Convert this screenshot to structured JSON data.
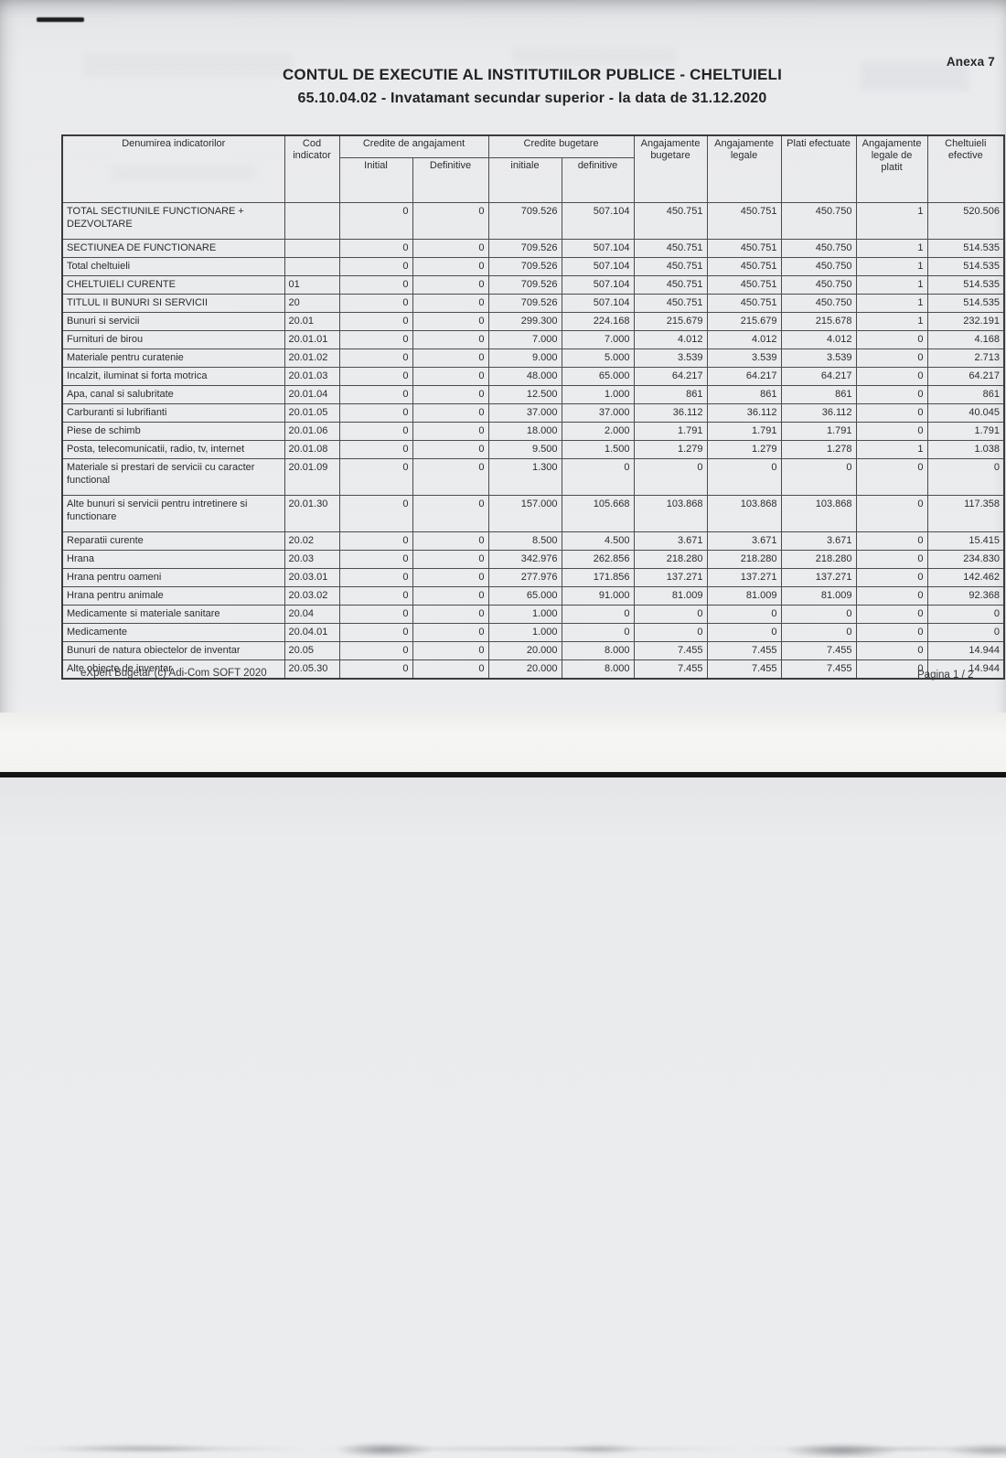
{
  "page": {
    "anexa_label": "Anexa 7",
    "title_line1": "CONTUL DE EXECUTIE AL INSTITUTIILOR PUBLICE - CHELTUIELI",
    "title_line2": "65.10.04.02 - Invatamant secundar superior - la data de 31.12.2020",
    "footer_left": "eXpert Bugetar (c) Adi-Com SOFT 2020",
    "footer_right": "Pagina 1 / 2"
  },
  "table": {
    "columns": {
      "name": "Denumirea indicatorilor",
      "code_line1": "Cod",
      "code_line2": "indicator",
      "group_angajament": "Credite de angajament",
      "group_bugetare": "Credite bugetare",
      "sub_initial": "Initial",
      "sub_definitive": "Definitive",
      "sub_initiale": "initiale",
      "sub_definitive2": "definitive",
      "ang_bugetare": "Angajamente bugetare",
      "ang_legale": "Angajamente legale",
      "plati_efectuate": "Plati efectuate",
      "ang_legale_platit": "Angajamente legale de platit",
      "cheltuieli_efective": "Cheltuieli efective"
    },
    "rows": [
      {
        "name": "TOTAL SECTIUNILE FUNCTIONARE + DEZVOLTARE",
        "code": "",
        "tall": true,
        "values": [
          "0",
          "0",
          "709.526",
          "507.104",
          "450.751",
          "450.751",
          "450.750",
          "1",
          "520.506"
        ]
      },
      {
        "name": "SECTIUNEA DE FUNCTIONARE",
        "code": "",
        "tall": false,
        "values": [
          "0",
          "0",
          "709.526",
          "507.104",
          "450.751",
          "450.751",
          "450.750",
          "1",
          "514.535"
        ]
      },
      {
        "name": "Total cheltuieli",
        "code": "",
        "tall": false,
        "values": [
          "0",
          "0",
          "709.526",
          "507.104",
          "450.751",
          "450.751",
          "450.750",
          "1",
          "514.535"
        ]
      },
      {
        "name": "CHELTUIELI CURENTE",
        "code": "01",
        "tall": false,
        "values": [
          "0",
          "0",
          "709.526",
          "507.104",
          "450.751",
          "450.751",
          "450.750",
          "1",
          "514.535"
        ]
      },
      {
        "name": "TITLUL II BUNURI SI SERVICII",
        "code": "20",
        "tall": false,
        "values": [
          "0",
          "0",
          "709.526",
          "507.104",
          "450.751",
          "450.751",
          "450.750",
          "1",
          "514.535"
        ]
      },
      {
        "name": "Bunuri si servicii",
        "code": "20.01",
        "tall": false,
        "values": [
          "0",
          "0",
          "299.300",
          "224.168",
          "215.679",
          "215.679",
          "215.678",
          "1",
          "232.191"
        ]
      },
      {
        "name": "Furnituri de birou",
        "code": "20.01.01",
        "tall": false,
        "values": [
          "0",
          "0",
          "7.000",
          "7.000",
          "4.012",
          "4.012",
          "4.012",
          "0",
          "4.168"
        ]
      },
      {
        "name": "Materiale pentru curatenie",
        "code": "20.01.02",
        "tall": false,
        "values": [
          "0",
          "0",
          "9.000",
          "5.000",
          "3.539",
          "3.539",
          "3.539",
          "0",
          "2.713"
        ]
      },
      {
        "name": "Incalzit, iluminat si forta motrica",
        "code": "20.01.03",
        "tall": false,
        "values": [
          "0",
          "0",
          "48.000",
          "65.000",
          "64.217",
          "64.217",
          "64.217",
          "0",
          "64.217"
        ]
      },
      {
        "name": "Apa, canal si salubritate",
        "code": "20.01.04",
        "tall": false,
        "values": [
          "0",
          "0",
          "12.500",
          "1.000",
          "861",
          "861",
          "861",
          "0",
          "861"
        ]
      },
      {
        "name": "Carburanti si lubrifianti",
        "code": "20.01.05",
        "tall": false,
        "values": [
          "0",
          "0",
          "37.000",
          "37.000",
          "36.112",
          "36.112",
          "36.112",
          "0",
          "40.045"
        ]
      },
      {
        "name": "Piese de schimb",
        "code": "20.01.06",
        "tall": false,
        "values": [
          "0",
          "0",
          "18.000",
          "2.000",
          "1.791",
          "1.791",
          "1.791",
          "0",
          "1.791"
        ]
      },
      {
        "name": "Posta, telecomunicatii, radio, tv, internet",
        "code": "20.01.08",
        "tall": false,
        "values": [
          "0",
          "0",
          "9.500",
          "1.500",
          "1.279",
          "1.279",
          "1.278",
          "1",
          "1.038"
        ]
      },
      {
        "name": "Materiale si prestari de servicii cu caracter functional",
        "code": "20.01.09",
        "tall": true,
        "values": [
          "0",
          "0",
          "1.300",
          "0",
          "0",
          "0",
          "0",
          "0",
          "0"
        ]
      },
      {
        "name": "Alte bunuri si servicii pentru intretinere si functionare",
        "code": "20.01.30",
        "tall": true,
        "values": [
          "0",
          "0",
          "157.000",
          "105.668",
          "103.868",
          "103.868",
          "103.868",
          "0",
          "117.358"
        ]
      },
      {
        "name": "Reparatii curente",
        "code": "20.02",
        "tall": false,
        "values": [
          "0",
          "0",
          "8.500",
          "4.500",
          "3.671",
          "3.671",
          "3.671",
          "0",
          "15.415"
        ]
      },
      {
        "name": "Hrana",
        "code": "20.03",
        "tall": false,
        "values": [
          "0",
          "0",
          "342.976",
          "262.856",
          "218.280",
          "218.280",
          "218.280",
          "0",
          "234.830"
        ]
      },
      {
        "name": "Hrana pentru oameni",
        "code": "20.03.01",
        "tall": false,
        "values": [
          "0",
          "0",
          "277.976",
          "171.856",
          "137.271",
          "137.271",
          "137.271",
          "0",
          "142.462"
        ]
      },
      {
        "name": "Hrana pentru animale",
        "code": "20.03.02",
        "tall": false,
        "values": [
          "0",
          "0",
          "65.000",
          "91.000",
          "81.009",
          "81.009",
          "81.009",
          "0",
          "92.368"
        ]
      },
      {
        "name": "Medicamente si materiale sanitare",
        "code": "20.04",
        "tall": false,
        "values": [
          "0",
          "0",
          "1.000",
          "0",
          "0",
          "0",
          "0",
          "0",
          "0"
        ]
      },
      {
        "name": "Medicamente",
        "code": "20.04.01",
        "tall": false,
        "values": [
          "0",
          "0",
          "1.000",
          "0",
          "0",
          "0",
          "0",
          "0",
          "0"
        ]
      },
      {
        "name": "Bunuri de natura obiectelor de inventar",
        "code": "20.05",
        "tall": false,
        "values": [
          "0",
          "0",
          "20.000",
          "8.000",
          "7.455",
          "7.455",
          "7.455",
          "0",
          "14.944"
        ]
      },
      {
        "name": "Alte obiecte de inventar",
        "code": "20.05.30",
        "tall": false,
        "values": [
          "0",
          "0",
          "20.000",
          "8.000",
          "7.455",
          "7.455",
          "7.455",
          "0",
          "14.944"
        ]
      }
    ]
  }
}
